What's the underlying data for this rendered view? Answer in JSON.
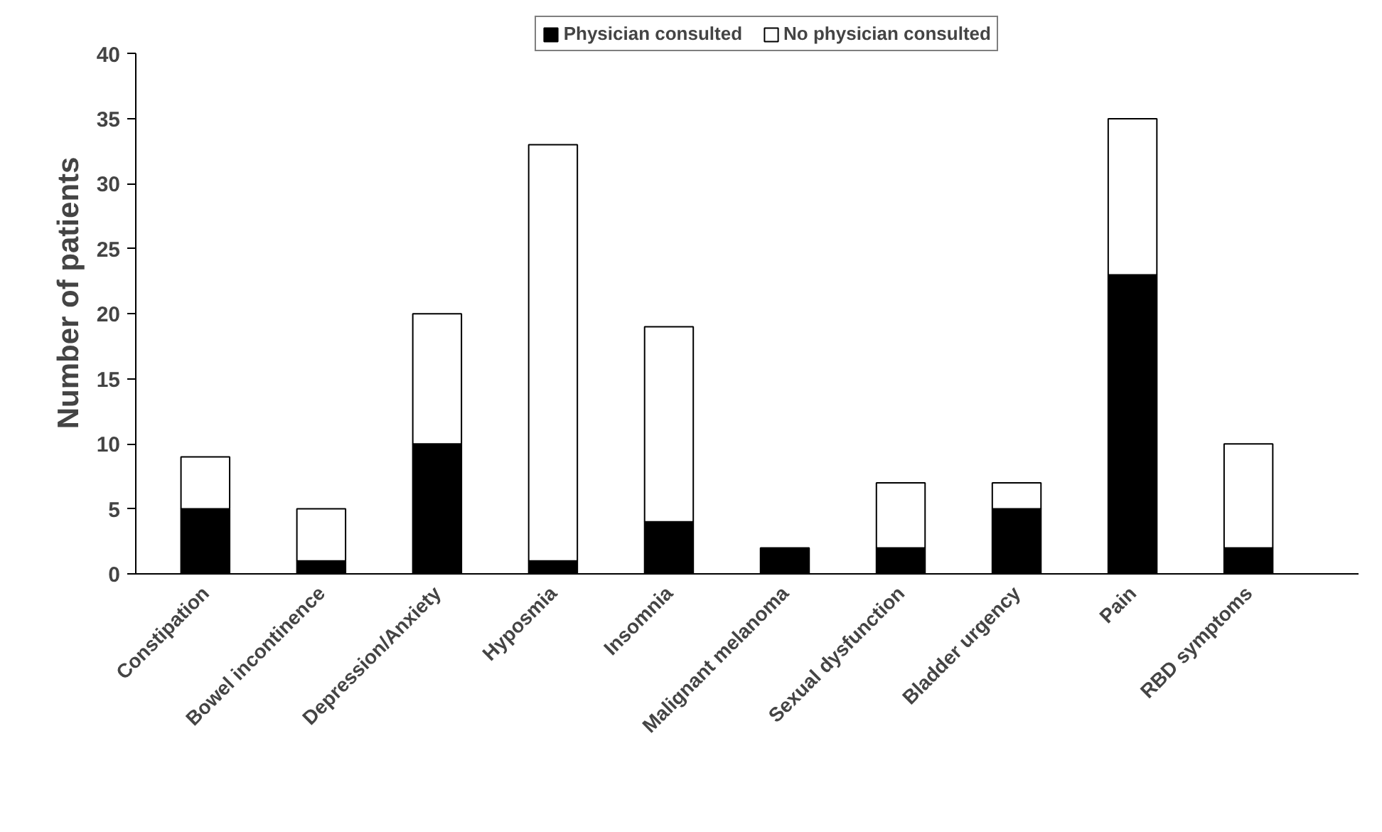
{
  "chart_data": {
    "type": "bar",
    "stacked": true,
    "ylabel": "Number of patients",
    "categories": [
      "Constipation",
      "Bowel incontinence",
      "Depression/Anxiety",
      "Hyposmia",
      "Insomnia",
      "Malignant melanoma",
      "Sexual dysfunction",
      "Bladder urgency",
      "Pain",
      "RBD symptoms"
    ],
    "series": [
      {
        "name": "Physician consulted",
        "color": "#000000",
        "values": [
          5,
          1,
          10,
          1,
          4,
          2,
          2,
          5,
          23,
          2
        ]
      },
      {
        "name": "No physician consulted",
        "color": "#ffffff",
        "values": [
          4,
          4,
          10,
          32,
          15,
          0,
          5,
          2,
          12,
          8
        ]
      }
    ],
    "ylim": [
      0,
      40
    ],
    "yticks": [
      0,
      5,
      10,
      15,
      20,
      25,
      30,
      35,
      40
    ],
    "grid": false,
    "legend": "top"
  }
}
